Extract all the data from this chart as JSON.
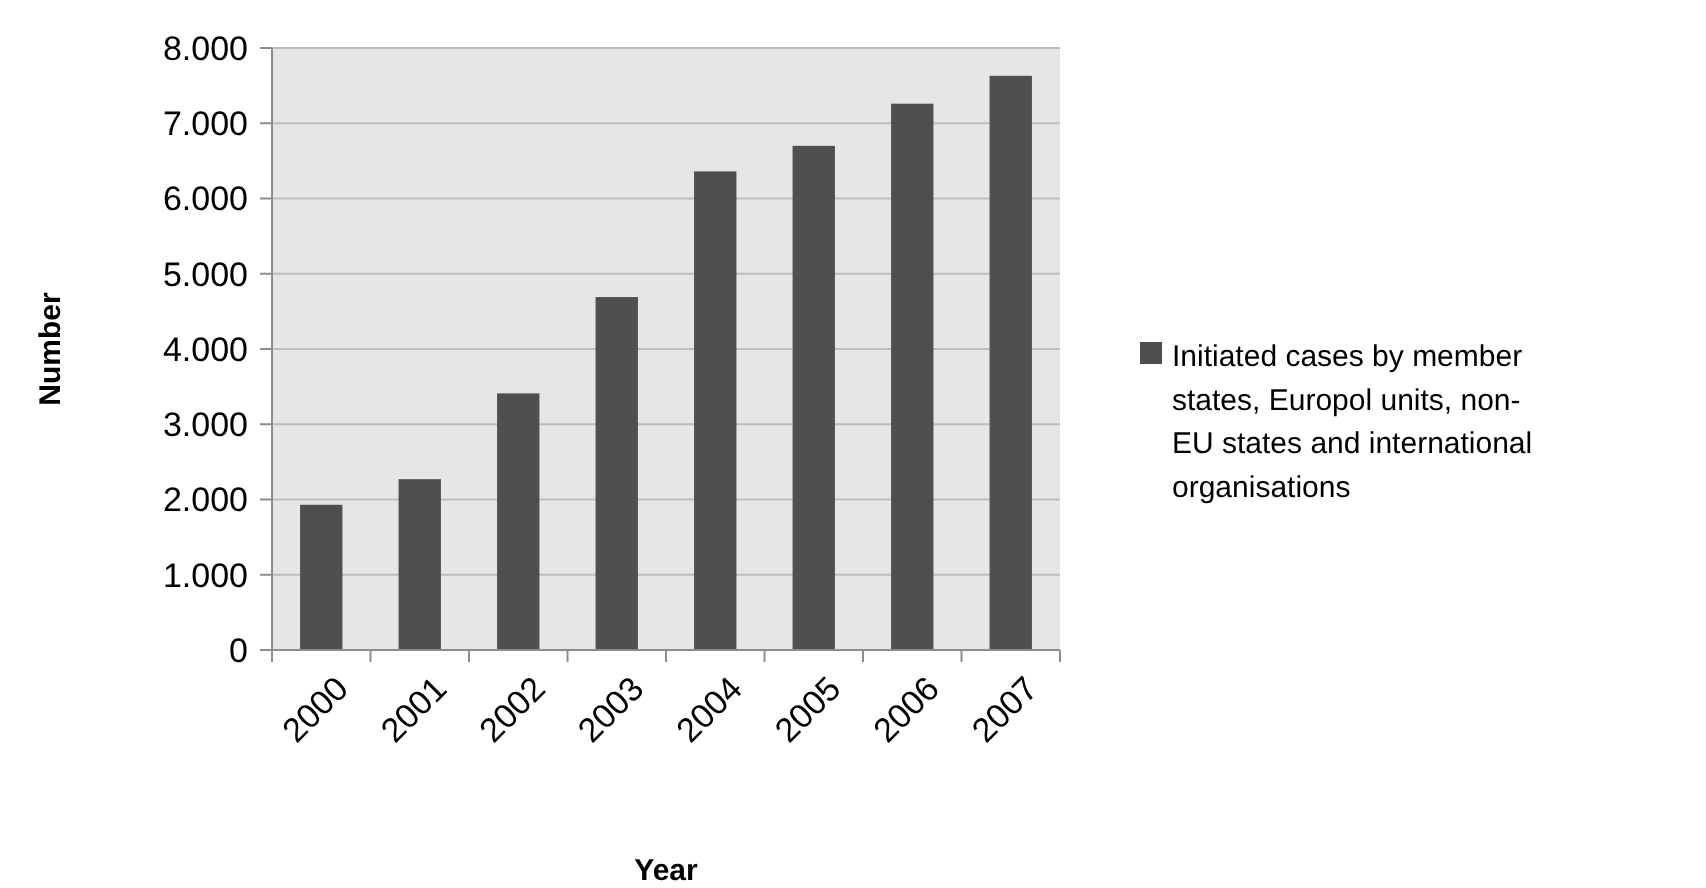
{
  "chart_data": {
    "type": "bar",
    "xlabel": "Year",
    "ylabel": "Number",
    "categories": [
      "2000",
      "2001",
      "2002",
      "2003",
      "2004",
      "2005",
      "2006",
      "2007"
    ],
    "series": [
      {
        "name": "Initiated cases by member states, Europol units, non-EU states and international organisations",
        "color": "#4f4f4f",
        "values": [
          1930,
          2270,
          3410,
          4690,
          6360,
          6700,
          7260,
          7630
        ]
      }
    ],
    "ylim": [
      0,
      8000
    ],
    "yticks": [
      0,
      {
        "value": 1000,
        "label": "1.000"
      },
      {
        "value": 2000,
        "label": "2.000"
      },
      {
        "value": 3000,
        "label": "3.000"
      },
      {
        "value": 4000,
        "label": "4.000"
      },
      {
        "value": 5000,
        "label": "5.000"
      },
      {
        "value": 6000,
        "label": "6.000"
      },
      {
        "value": 7000,
        "label": "7.000"
      },
      {
        "value": 8000,
        "label": "8.000"
      }
    ],
    "grid": "y",
    "legend": "right"
  }
}
